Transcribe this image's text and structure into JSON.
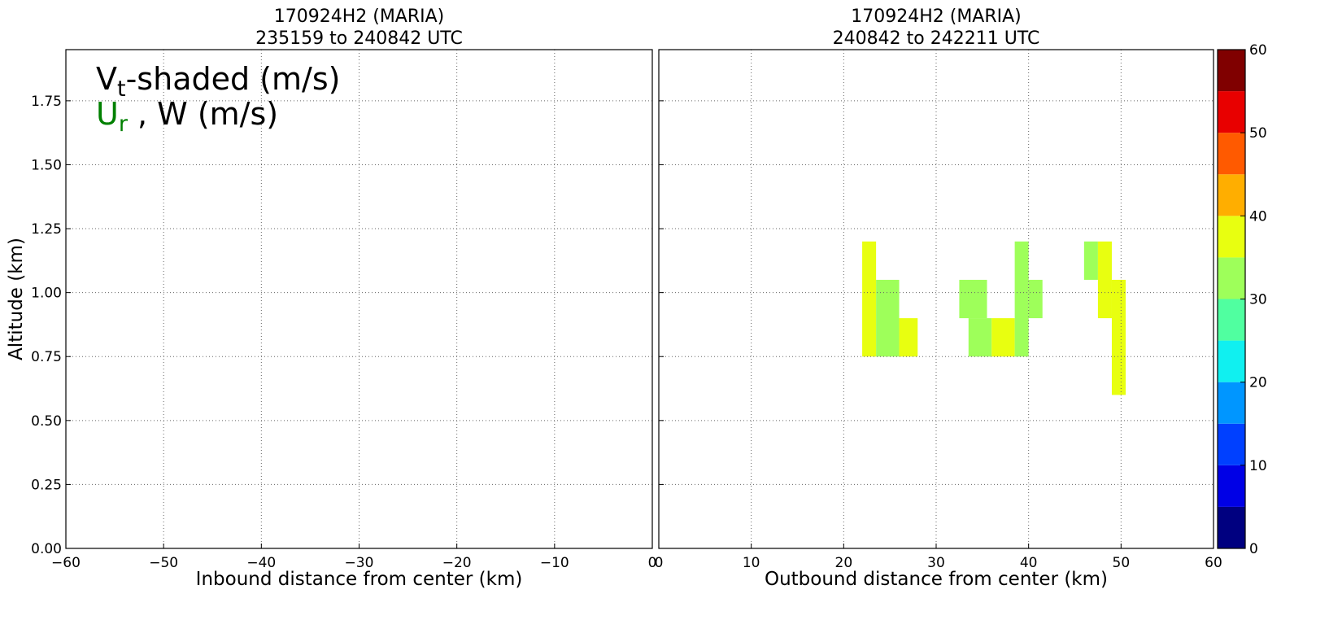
{
  "chart_data": [
    {
      "type": "contour",
      "title": "170924H2 (MARIA)",
      "subtitle": "235159 to 240842 UTC",
      "xlabel": "Inbound distance from center (km)",
      "ylabel": "Altitude (km)",
      "xlim": [
        -60,
        0
      ],
      "xticks": [
        {
          "value": -60,
          "label": "−60"
        },
        {
          "value": -50,
          "label": "−50"
        },
        {
          "value": -40,
          "label": "−40"
        },
        {
          "value": -30,
          "label": "−30"
        },
        {
          "value": -20,
          "label": "−20"
        },
        {
          "value": -10,
          "label": "−10"
        },
        0
      ],
      "ylim": [
        0,
        1.95
      ],
      "yticks": [
        {
          "value": 0,
          "label": "0.00"
        },
        {
          "value": 0.25,
          "label": "0.25"
        },
        {
          "value": 0.5,
          "label": "0.50"
        },
        {
          "value": 0.75,
          "label": "0.75"
        },
        {
          "value": 1,
          "label": "1.00"
        },
        {
          "value": 1.25,
          "label": "1.25"
        },
        {
          "value": 1.5,
          "label": "1.50"
        },
        {
          "value": 1.75,
          "label": "1.75"
        }
      ],
      "grid": true,
      "annotations": [
        {
          "parts": [
            "V",
            "t",
            "-shaded (m/s)"
          ],
          "colors": [
            "#000000",
            "#000000",
            "#000000"
          ]
        },
        {
          "parts": [
            "U",
            "r",
            " , W (m/s)"
          ],
          "colors": [
            "#008000",
            "#008000",
            "#000000"
          ]
        }
      ],
      "cells": []
    },
    {
      "type": "contour",
      "title": "170924H2 (MARIA)",
      "subtitle": "240842 to 242211 UTC",
      "xlabel": "Outbound distance from center (km)",
      "xlim": [
        0,
        60
      ],
      "xticks": [
        0,
        10,
        20,
        30,
        40,
        50,
        60
      ],
      "ylim": [
        0,
        1.95
      ],
      "yticks": [
        0,
        0.25,
        0.5,
        0.75,
        1,
        1.25,
        1.5,
        1.75
      ],
      "grid": true,
      "cells": [
        {
          "x": [
            22,
            23.5
          ],
          "y": [
            0.75,
            1.2
          ],
          "value": 37
        },
        {
          "x": [
            23.5,
            26
          ],
          "y": [
            0.75,
            1.05
          ],
          "value": 33
        },
        {
          "x": [
            26,
            28
          ],
          "y": [
            0.75,
            0.9
          ],
          "value": 37
        },
        {
          "x": [
            32.5,
            35.5
          ],
          "y": [
            0.9,
            1.05
          ],
          "value": 33
        },
        {
          "x": [
            33.5,
            36
          ],
          "y": [
            0.75,
            0.9
          ],
          "value": 33
        },
        {
          "x": [
            36,
            38.5
          ],
          "y": [
            0.75,
            0.9
          ],
          "value": 37
        },
        {
          "x": [
            38.5,
            40
          ],
          "y": [
            0.75,
            1.2
          ],
          "value": 33
        },
        {
          "x": [
            40,
            41.5
          ],
          "y": [
            0.9,
            1.05
          ],
          "value": 33
        },
        {
          "x": [
            46,
            47.5
          ],
          "y": [
            1.05,
            1.2
          ],
          "value": 33
        },
        {
          "x": [
            47.5,
            49
          ],
          "y": [
            0.9,
            1.2
          ],
          "value": 37
        },
        {
          "x": [
            49,
            50.5
          ],
          "y": [
            0.6,
            1.05
          ],
          "value": 37
        }
      ],
      "colorbar": {
        "levels": [
          0,
          5,
          10,
          15,
          20,
          25,
          30,
          35,
          40,
          45,
          50,
          55,
          60
        ],
        "colors": [
          "#000080",
          "#0000e6",
          "#0040ff",
          "#0096ff",
          "#10f0f0",
          "#50ffa0",
          "#9eff5a",
          "#e8ff10",
          "#ffae00",
          "#ff5a00",
          "#e80000",
          "#800000"
        ],
        "ticks": [
          0,
          10,
          20,
          30,
          40,
          50,
          60
        ]
      }
    }
  ]
}
